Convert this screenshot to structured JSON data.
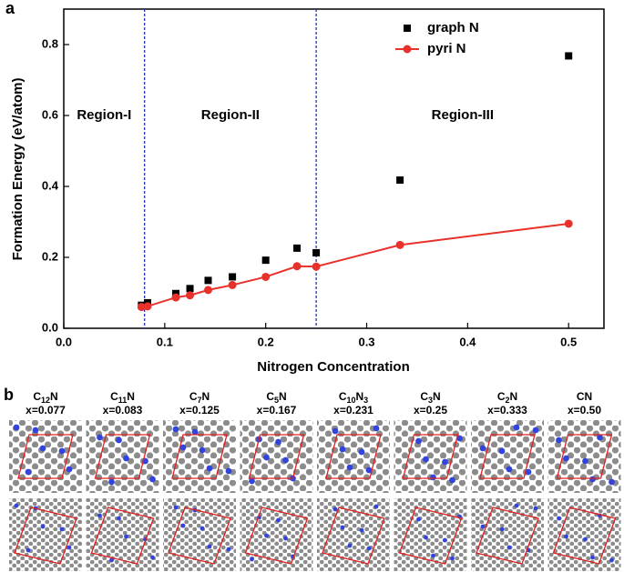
{
  "chart_data": {
    "type": "scatter-line",
    "panel_label": "a",
    "x_label": "Nitrogen Concentration",
    "y_label": "Formation Energy (eV/atom)",
    "x": [
      0.077,
      0.083,
      0.111,
      0.125,
      0.143,
      0.167,
      0.2,
      0.231,
      0.25,
      0.333,
      0.5
    ],
    "series": [
      {
        "name": "graph N",
        "color": "#000000",
        "marker": "square",
        "line": false,
        "values": [
          0.065,
          0.072,
          0.098,
          0.112,
          0.135,
          0.145,
          0.192,
          0.226,
          0.213,
          0.418,
          0.768
        ]
      },
      {
        "name": "pyri N",
        "color": "#e8312a",
        "marker": "circle",
        "line": true,
        "values": [
          0.06,
          0.062,
          0.087,
          0.093,
          0.108,
          0.122,
          0.145,
          0.175,
          0.174,
          0.235,
          0.295
        ]
      }
    ],
    "xlim": [
      0,
      0.535
    ],
    "ylim": [
      0,
      0.9
    ],
    "xticks": [
      {
        "value": 0,
        "label": "0.0"
      },
      0.1,
      0.2,
      0.3,
      0.4,
      0.5
    ],
    "yticks": [
      {
        "value": 0,
        "label": "0.0"
      },
      0.2,
      0.4,
      0.6,
      0.8
    ],
    "region_bounds": [
      0.08,
      0.25
    ],
    "regions": [
      {
        "label": "Region-I",
        "x": 0.04
      },
      {
        "label": "Region-II",
        "x": 0.165
      },
      {
        "label": "Region-III",
        "x": 0.395
      }
    ],
    "region_label_y": 0.6,
    "legend": "upper right"
  },
  "structures": {
    "panel_label": "b",
    "items": [
      {
        "formula": [
          "C",
          "12",
          "N"
        ],
        "conc": "x=0.077"
      },
      {
        "formula": [
          "C",
          "11",
          "N"
        ],
        "conc": "x=0.083"
      },
      {
        "formula": [
          "C",
          "7",
          "N"
        ],
        "conc": "x=0.125"
      },
      {
        "formula": [
          "C",
          "5",
          "N"
        ],
        "conc": "x=0.167"
      },
      {
        "formula": [
          "C",
          "10",
          "N",
          "3"
        ],
        "conc": "x=0.231"
      },
      {
        "formula": [
          "C",
          "3",
          "N"
        ],
        "conc": "x=0.25"
      },
      {
        "formula": [
          "C",
          "2",
          "N"
        ],
        "conc": "x=0.333"
      },
      {
        "formula": [
          "CN"
        ],
        "conc": "x=0.50"
      }
    ]
  }
}
